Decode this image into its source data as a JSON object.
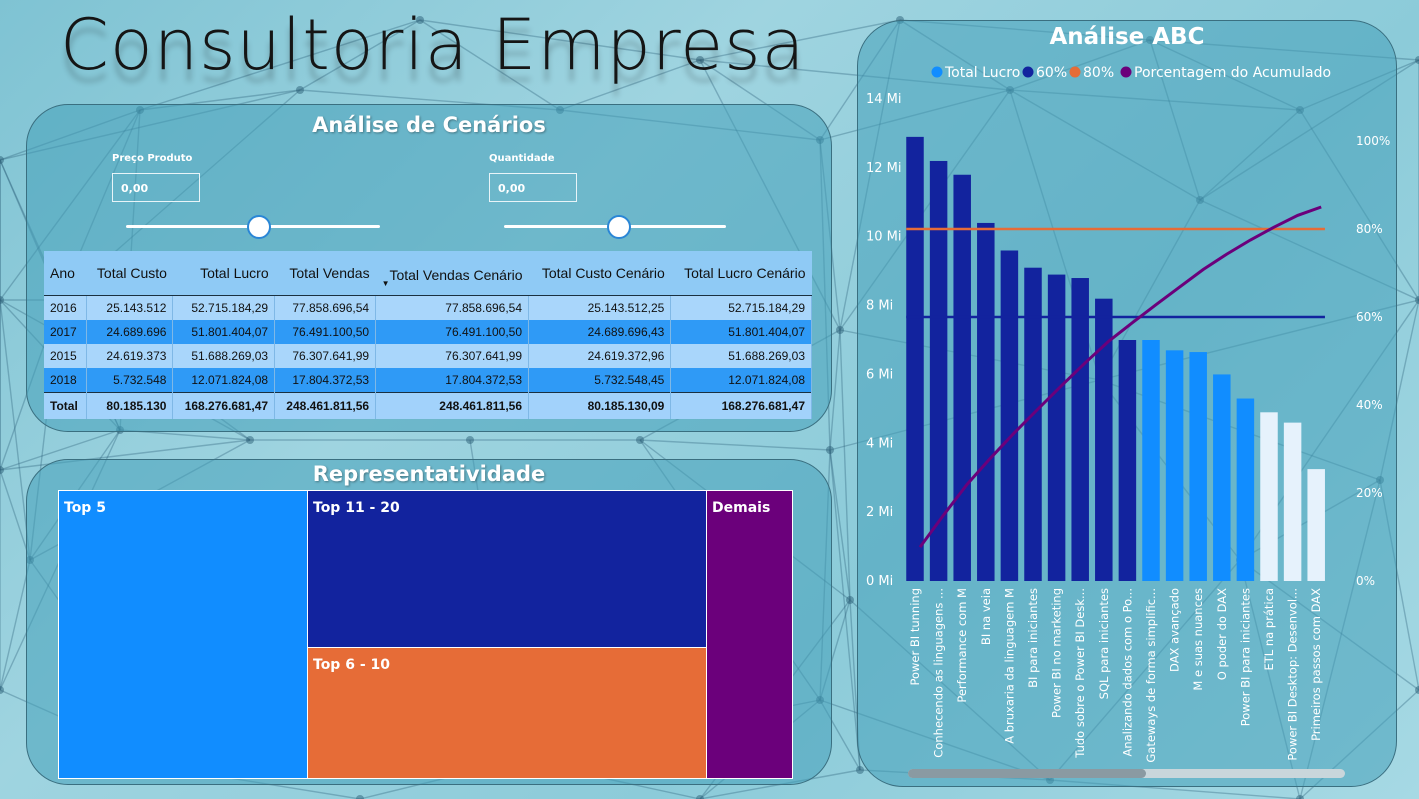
{
  "header": {
    "title": "Consultoria Empresa"
  },
  "colors": {
    "blue_light": "#118dff",
    "navy": "#12239e",
    "orange": "#e66c37",
    "purple": "#6b007b",
    "pale": "#e6f2fc"
  },
  "scenario": {
    "title": "Análise de Cenários",
    "price_label": "Preço Produto",
    "price_value": "0,00",
    "qty_label": "Quantidade",
    "qty_value": "0,00",
    "price_slider_position": 0.53,
    "qty_slider_position": 0.51
  },
  "table": {
    "columns": [
      "Ano",
      "Total Custo",
      "Total Lucro",
      "Total Vendas",
      "Total Vendas Cenário",
      "Total Custo Cenário",
      "Total Lucro Cenário"
    ],
    "rows": [
      [
        "2016",
        "25.143.512",
        "52.715.184,29",
        "77.858.696,54",
        "77.858.696,54",
        "25.143.512,25",
        "52.715.184,29"
      ],
      [
        "2017",
        "24.689.696",
        "51.801.404,07",
        "76.491.100,50",
        "76.491.100,50",
        "24.689.696,43",
        "51.801.404,07"
      ],
      [
        "2015",
        "24.619.373",
        "51.688.269,03",
        "76.307.641,99",
        "76.307.641,99",
        "24.619.372,96",
        "51.688.269,03"
      ],
      [
        "2018",
        "5.732.548",
        "12.071.824,08",
        "17.804.372,53",
        "17.804.372,53",
        "5.732.548,45",
        "12.071.824,08"
      ]
    ],
    "total": [
      "Total",
      "80.185.130",
      "168.276.681,47",
      "248.461.811,56",
      "248.461.811,56",
      "80.185.130,09",
      "168.276.681,47"
    ]
  },
  "treemap": {
    "title": "Representatividade",
    "labels": [
      "Top 5",
      "Top 11 - 20",
      "Top 6 - 10",
      "Demais"
    ]
  },
  "chart_data": {
    "type": "bar",
    "title": "Análise ABC",
    "legend": [
      "Total Lucro",
      "60%",
      "80%",
      "Porcentagem do Acumulado"
    ],
    "legend_position": "top",
    "categories": [
      "Power BI tunning",
      "Conhecendo as linguagens ...",
      "Performance com M",
      "BI na veia",
      "A bruxaria da linguagem M",
      "BI para iniciantes",
      "Power BI no marketing",
      "Tudo sobre o Power BI Desk...",
      "SQL para iniciantes",
      "Analizando dados com o Po...",
      "Gateways de forma simplific...",
      "DAX avançado",
      "M e suas nuances",
      "O poder do DAX",
      "Power BI para iniciantes",
      "ETL na prática",
      "Power BI Desktop: Desenvol...",
      "Primeiros passos com DAX"
    ],
    "values": [
      12.9,
      12.2,
      11.8,
      10.4,
      9.6,
      9.1,
      8.9,
      8.8,
      8.2,
      7.0,
      7.0,
      6.7,
      6.65,
      6.0,
      5.3,
      4.9,
      4.6,
      3.25
    ],
    "bar_classes": [
      "A",
      "A",
      "A",
      "A",
      "A",
      "A",
      "A",
      "A",
      "A",
      "A",
      "B",
      "B",
      "B",
      "B",
      "B",
      "C",
      "C",
      "C"
    ],
    "cumulative_pct": [
      7.7,
      15,
      22,
      28,
      33.7,
      39.1,
      44.4,
      49.6,
      54.5,
      58.7,
      62.8,
      66.8,
      70.8,
      74.3,
      77.5,
      80.4,
      83.1,
      85
    ],
    "threshold_60": 60,
    "threshold_80": 80,
    "y_ticks": [
      "0 Mi",
      "2 Mi",
      "4 Mi",
      "6 Mi",
      "8 Mi",
      "10 Mi",
      "12 Mi",
      "14 Mi"
    ],
    "ylim": [
      0,
      14
    ],
    "y2_ticks": [
      "0%",
      "20%",
      "40%",
      "60%",
      "80%",
      "100%"
    ],
    "y2lim": [
      0,
      105
    ]
  }
}
